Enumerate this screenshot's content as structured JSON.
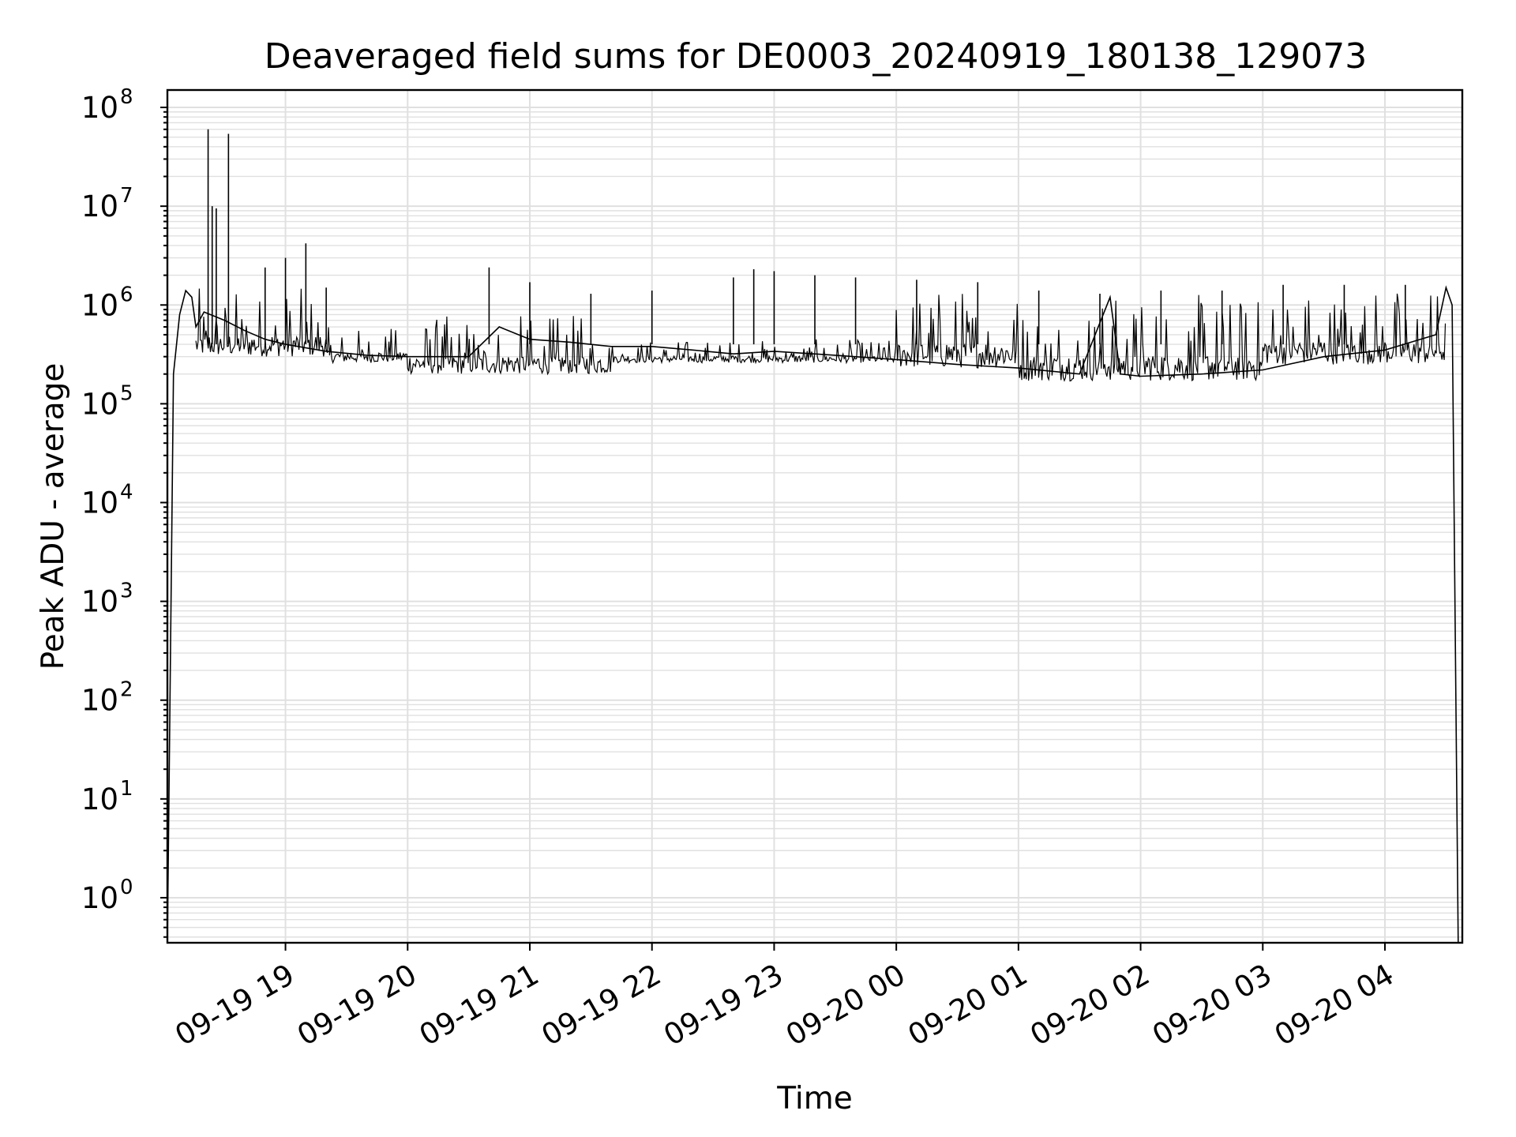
{
  "chart_data": {
    "type": "line",
    "title": "Deaveraged field sums for DE0003_20240919_180138_129073",
    "xlabel": "Time",
    "ylabel": "Peak ADU - average",
    "y_scale": "log",
    "ylim": [
      0.35,
      150000000
    ],
    "xlim": [
      "2024-09-19 18:02",
      "2024-09-20 04:38"
    ],
    "grid": true,
    "line_color": "#000000",
    "grid_color": "#e0e0e0",
    "x_ticks": [
      {
        "value": "2024-09-19 19:00",
        "label": "09-19 19"
      },
      {
        "value": "2024-09-19 20:00",
        "label": "09-19 20"
      },
      {
        "value": "2024-09-19 21:00",
        "label": "09-19 21"
      },
      {
        "value": "2024-09-19 22:00",
        "label": "09-19 22"
      },
      {
        "value": "2024-09-19 23:00",
        "label": "09-19 23"
      },
      {
        "value": "2024-09-20 00:00",
        "label": "09-20 00"
      },
      {
        "value": "2024-09-20 01:00",
        "label": "09-20 01"
      },
      {
        "value": "2024-09-20 02:00",
        "label": "09-20 02"
      },
      {
        "value": "2024-09-20 03:00",
        "label": "09-20 03"
      },
      {
        "value": "2024-09-20 04:00",
        "label": "09-20 04"
      }
    ],
    "y_ticks": [
      {
        "value": 1,
        "base": "10",
        "exp": "0"
      },
      {
        "value": 10,
        "base": "10",
        "exp": "1"
      },
      {
        "value": 100,
        "base": "10",
        "exp": "2"
      },
      {
        "value": 1000,
        "base": "10",
        "exp": "3"
      },
      {
        "value": 10000,
        "base": "10",
        "exp": "4"
      },
      {
        "value": 100000,
        "base": "10",
        "exp": "5"
      },
      {
        "value": 1000000,
        "base": "10",
        "exp": "6"
      },
      {
        "value": 10000000,
        "base": "10",
        "exp": "7"
      },
      {
        "value": 100000000,
        "base": "10",
        "exp": "8"
      }
    ],
    "baseline": [
      {
        "x": "2024-09-19 18:02",
        "y": 0.35
      },
      {
        "x": "2024-09-19 18:05",
        "y": 200000
      },
      {
        "x": "2024-09-19 18:08",
        "y": 800000
      },
      {
        "x": "2024-09-19 18:11",
        "y": 1400000
      },
      {
        "x": "2024-09-19 18:14",
        "y": 1200000
      },
      {
        "x": "2024-09-19 18:16",
        "y": 600000
      },
      {
        "x": "2024-09-19 18:20",
        "y": 850000
      },
      {
        "x": "2024-09-19 18:30",
        "y": 700000
      },
      {
        "x": "2024-09-19 18:40",
        "y": 550000
      },
      {
        "x": "2024-09-19 18:50",
        "y": 450000
      },
      {
        "x": "2024-09-19 19:00",
        "y": 400000
      },
      {
        "x": "2024-09-19 19:20",
        "y": 340000
      },
      {
        "x": "2024-09-19 19:40",
        "y": 310000
      },
      {
        "x": "2024-09-19 20:00",
        "y": 300000
      },
      {
        "x": "2024-09-19 20:30",
        "y": 300000
      },
      {
        "x": "2024-09-19 20:45",
        "y": 600000
      },
      {
        "x": "2024-09-19 21:00",
        "y": 450000
      },
      {
        "x": "2024-09-19 21:20",
        "y": 420000
      },
      {
        "x": "2024-09-19 21:40",
        "y": 380000
      },
      {
        "x": "2024-09-19 22:00",
        "y": 380000
      },
      {
        "x": "2024-09-19 22:20",
        "y": 350000
      },
      {
        "x": "2024-09-19 22:40",
        "y": 320000
      },
      {
        "x": "2024-09-19 23:00",
        "y": 340000
      },
      {
        "x": "2024-09-19 23:30",
        "y": 310000
      },
      {
        "x": "2024-09-20 00:00",
        "y": 280000
      },
      {
        "x": "2024-09-20 00:30",
        "y": 250000
      },
      {
        "x": "2024-09-20 01:00",
        "y": 230000
      },
      {
        "x": "2024-09-20 01:30",
        "y": 200000
      },
      {
        "x": "2024-09-20 01:45",
        "y": 1200000
      },
      {
        "x": "2024-09-20 01:50",
        "y": 200000
      },
      {
        "x": "2024-09-20 02:00",
        "y": 190000
      },
      {
        "x": "2024-09-20 02:30",
        "y": 200000
      },
      {
        "x": "2024-09-20 03:00",
        "y": 220000
      },
      {
        "x": "2024-09-20 03:30",
        "y": 300000
      },
      {
        "x": "2024-09-20 04:00",
        "y": 350000
      },
      {
        "x": "2024-09-20 04:25",
        "y": 500000
      },
      {
        "x": "2024-09-20 04:30",
        "y": 1500000
      },
      {
        "x": "2024-09-20 04:33",
        "y": 1000000
      },
      {
        "x": "2024-09-20 04:36",
        "y": 0.35
      }
    ],
    "spikes": [
      {
        "x": "2024-09-19 18:22",
        "y": 60000000
      },
      {
        "x": "2024-09-19 18:24",
        "y": 10000000
      },
      {
        "x": "2024-09-19 18:26",
        "y": 9500000
      },
      {
        "x": "2024-09-19 18:32",
        "y": 54000000
      },
      {
        "x": "2024-09-19 18:50",
        "y": 2400000
      },
      {
        "x": "2024-09-19 19:00",
        "y": 3000000
      },
      {
        "x": "2024-09-19 19:10",
        "y": 4200000
      },
      {
        "x": "2024-09-19 19:20",
        "y": 1500000
      },
      {
        "x": "2024-09-19 20:40",
        "y": 2400000
      },
      {
        "x": "2024-09-19 21:00",
        "y": 1700000
      },
      {
        "x": "2024-09-19 21:30",
        "y": 1300000
      },
      {
        "x": "2024-09-19 22:00",
        "y": 1400000
      },
      {
        "x": "2024-09-19 22:40",
        "y": 1900000
      },
      {
        "x": "2024-09-19 22:50",
        "y": 2300000
      },
      {
        "x": "2024-09-19 23:00",
        "y": 2200000
      },
      {
        "x": "2024-09-19 23:20",
        "y": 2000000
      },
      {
        "x": "2024-09-19 23:40",
        "y": 1900000
      },
      {
        "x": "2024-09-20 00:10",
        "y": 1800000
      },
      {
        "x": "2024-09-20 00:40",
        "y": 1700000
      },
      {
        "x": "2024-09-20 01:10",
        "y": 1400000
      },
      {
        "x": "2024-09-20 01:40",
        "y": 1300000
      },
      {
        "x": "2024-09-20 02:10",
        "y": 1400000
      },
      {
        "x": "2024-09-20 02:40",
        "y": 1400000
      },
      {
        "x": "2024-09-20 03:10",
        "y": 1600000
      },
      {
        "x": "2024-09-20 03:40",
        "y": 1600000
      },
      {
        "x": "2024-09-20 04:10",
        "y": 1600000
      }
    ],
    "noise_bands": [
      {
        "from": "2024-09-19 18:16",
        "to": "2024-09-19 19:20",
        "min": 300000,
        "max": 1500000
      },
      {
        "from": "2024-09-19 19:20",
        "to": "2024-09-19 20:00",
        "min": 260000,
        "max": 600000
      },
      {
        "from": "2024-09-19 20:00",
        "to": "2024-09-19 21:40",
        "min": 200000,
        "max": 800000
      },
      {
        "from": "2024-09-19 21:40",
        "to": "2024-09-20 00:00",
        "min": 260000,
        "max": 450000
      },
      {
        "from": "2024-09-20 00:00",
        "to": "2024-09-20 01:00",
        "min": 230000,
        "max": 1600000
      },
      {
        "from": "2024-09-20 01:00",
        "to": "2024-09-20 03:00",
        "min": 170000,
        "max": 1300000
      },
      {
        "from": "2024-09-20 03:00",
        "to": "2024-09-20 04:30",
        "min": 250000,
        "max": 1600000
      }
    ]
  }
}
